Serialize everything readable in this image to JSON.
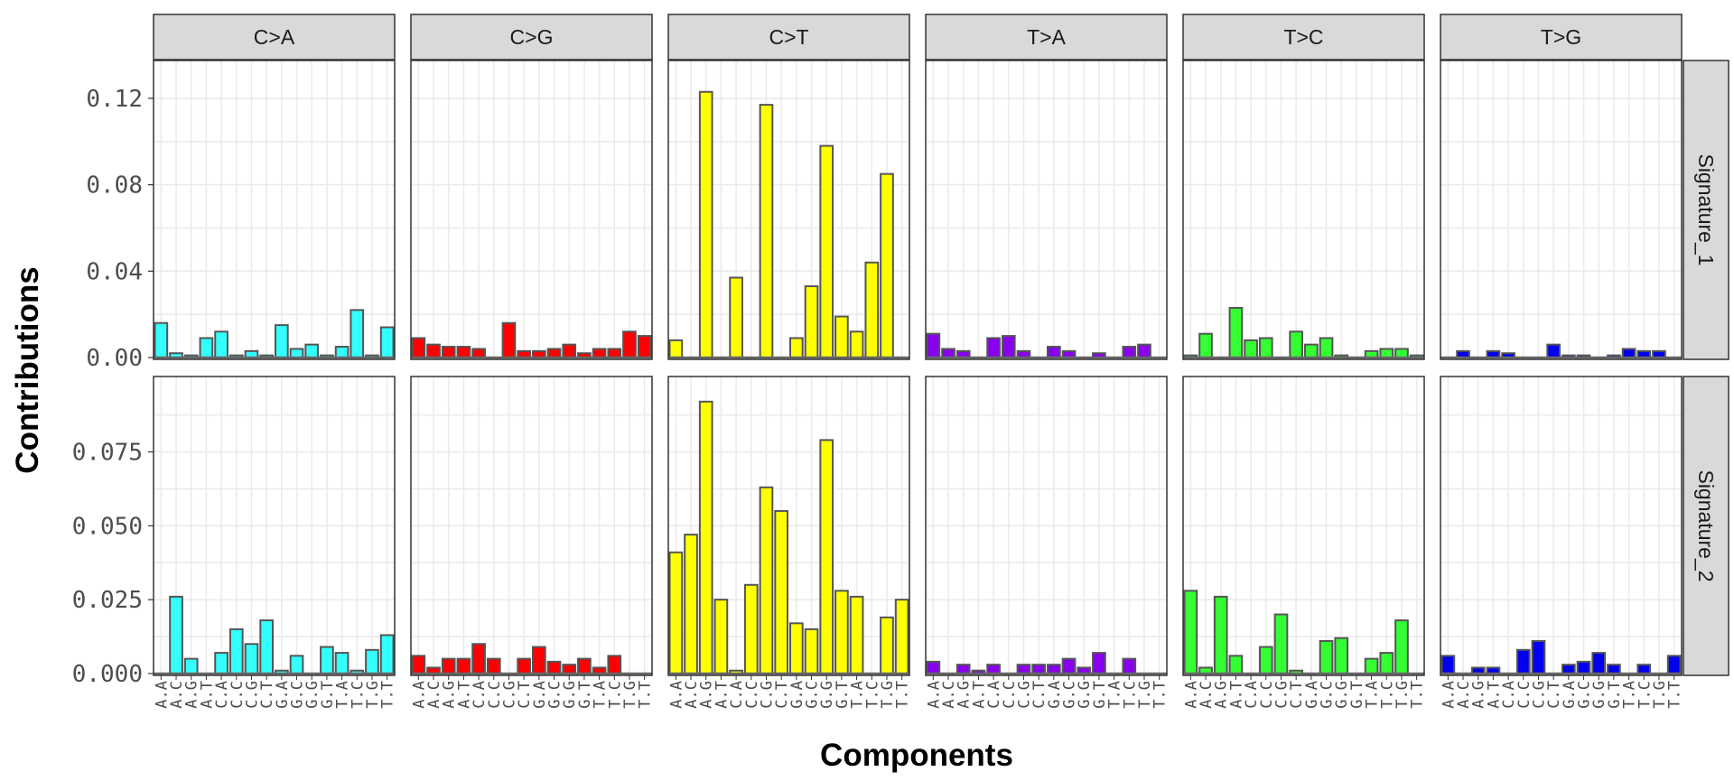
{
  "chart_data": {
    "type": "bar",
    "xlabel": "Components",
    "ylabel": "Contributions",
    "grid": true,
    "legend": "none",
    "mutation_types": [
      "C>A",
      "C>G",
      "C>T",
      "T>A",
      "T>C",
      "T>G"
    ],
    "colors": {
      "C>A": "#33ffff",
      "C>G": "#ff0000",
      "C>T": "#ffff00",
      "T>A": "#8800ee",
      "T>C": "#33ff33",
      "T>G": "#0000ee"
    },
    "contexts": [
      "A.A",
      "A.C",
      "A.G",
      "A.T",
      "C.A",
      "C.C",
      "C.G",
      "C.T",
      "G.A",
      "G.C",
      "G.G",
      "G.T",
      "T.A",
      "T.C",
      "T.G",
      "T.T"
    ],
    "signatures": [
      {
        "name": "Signature_1",
        "ylim": [
          0,
          0.13
        ],
        "yticks": [
          0.0,
          0.04,
          0.08,
          0.12
        ],
        "ytick_labels": [
          "0.00",
          "0.04",
          "0.08",
          "0.12"
        ],
        "values": {
          "C>A": [
            0.016,
            0.002,
            0.001,
            0.009,
            0.012,
            0.001,
            0.003,
            0.001,
            0.015,
            0.004,
            0.006,
            0.001,
            0.005,
            0.022,
            0.001,
            0.014
          ],
          "C>G": [
            0.009,
            0.006,
            0.005,
            0.005,
            0.004,
            0.0,
            0.016,
            0.003,
            0.003,
            0.004,
            0.006,
            0.002,
            0.004,
            0.004,
            0.012,
            0.01
          ],
          "C>T": [
            0.008,
            0.0,
            0.123,
            0.0,
            0.037,
            0.0,
            0.117,
            0.0,
            0.009,
            0.033,
            0.098,
            0.019,
            0.012,
            0.044,
            0.085,
            0.0
          ],
          "T>A": [
            0.011,
            0.004,
            0.003,
            0.0,
            0.009,
            0.01,
            0.003,
            0.0,
            0.005,
            0.003,
            0.0,
            0.002,
            0.0,
            0.005,
            0.006,
            0.0
          ],
          "T>C": [
            0.001,
            0.011,
            0.0,
            0.023,
            0.008,
            0.009,
            0.0,
            0.012,
            0.006,
            0.009,
            0.001,
            0.0,
            0.003,
            0.004,
            0.004,
            0.001
          ],
          "T>G": [
            0.0,
            0.003,
            0.0,
            0.003,
            0.002,
            0.0,
            0.0,
            0.006,
            0.001,
            0.001,
            0.0,
            0.001,
            0.004,
            0.003,
            0.003,
            0.0
          ]
        }
      },
      {
        "name": "Signature_2",
        "ylim": [
          0,
          0.095
        ],
        "yticks": [
          0.0,
          0.025,
          0.05,
          0.075
        ],
        "ytick_labels": [
          "0.000",
          "0.025",
          "0.050",
          "0.075"
        ],
        "values": {
          "C>A": [
            0.0,
            0.026,
            0.005,
            0.0,
            0.007,
            0.015,
            0.01,
            0.018,
            0.001,
            0.006,
            0.0,
            0.009,
            0.007,
            0.001,
            0.008,
            0.013
          ],
          "C>G": [
            0.006,
            0.002,
            0.005,
            0.005,
            0.01,
            0.005,
            0.0,
            0.005,
            0.009,
            0.004,
            0.003,
            0.005,
            0.002,
            0.006,
            0.0,
            0.0
          ],
          "C>T": [
            0.041,
            0.047,
            0.092,
            0.025,
            0.001,
            0.03,
            0.063,
            0.055,
            0.017,
            0.015,
            0.079,
            0.028,
            0.026,
            0.0,
            0.019,
            0.025
          ],
          "T>A": [
            0.004,
            0.0,
            0.003,
            0.001,
            0.003,
            0.0,
            0.003,
            0.003,
            0.003,
            0.005,
            0.002,
            0.007,
            0.0,
            0.005,
            0.0,
            0.0
          ],
          "T>C": [
            0.028,
            0.002,
            0.026,
            0.006,
            0.0,
            0.009,
            0.02,
            0.001,
            0.0,
            0.011,
            0.012,
            0.0,
            0.005,
            0.007,
            0.018,
            0.0
          ],
          "T>G": [
            0.006,
            0.0,
            0.002,
            0.002,
            0.0,
            0.008,
            0.011,
            0.0,
            0.003,
            0.004,
            0.007,
            0.003,
            0.0,
            0.003,
            0.0,
            0.006
          ]
        }
      }
    ]
  }
}
